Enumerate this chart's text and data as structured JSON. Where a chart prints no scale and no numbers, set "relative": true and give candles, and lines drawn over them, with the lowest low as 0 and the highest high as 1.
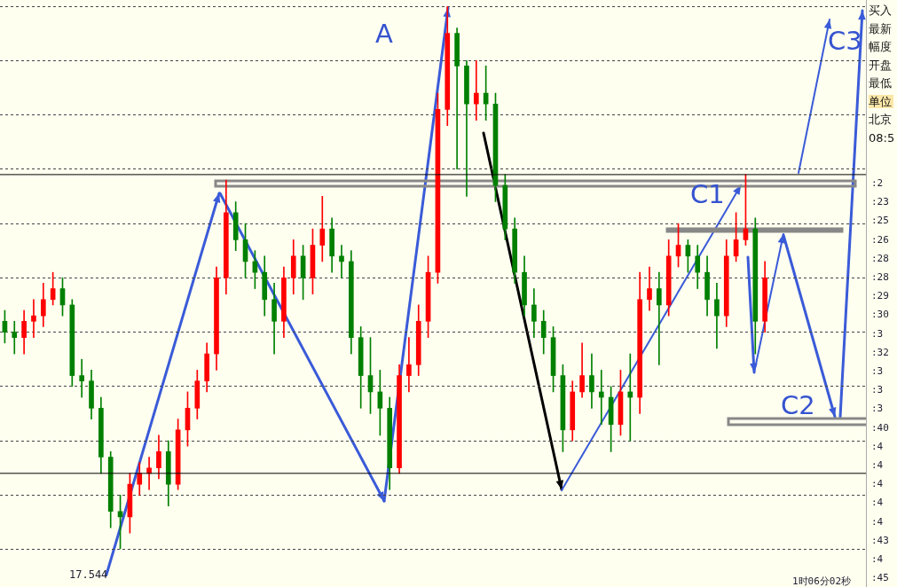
{
  "chart_data": {
    "type": "candlestick",
    "relative": true,
    "grid": "y",
    "legend": false,
    "categories": [
      null,
      null,
      null,
      null,
      null,
      null,
      null,
      null,
      null,
      null,
      null,
      null,
      null,
      null,
      null,
      null,
      null,
      null,
      null,
      null,
      null,
      null,
      null,
      null,
      null,
      null,
      null,
      null,
      null,
      null,
      null,
      null,
      null,
      null,
      null,
      null,
      null,
      null,
      null,
      null,
      null,
      null,
      null,
      null,
      null,
      null,
      null,
      null,
      null,
      null,
      null,
      null,
      null,
      null,
      null,
      null,
      null,
      null,
      null,
      null,
      null,
      null,
      null,
      null,
      null,
      null,
      null,
      null,
      null,
      null,
      null,
      null,
      null,
      null,
      null,
      null,
      null,
      null,
      null,
      null,
      null,
      null,
      null,
      null,
      null,
      null,
      null,
      null,
      null,
      null
    ],
    "ohlc": [
      [
        0.42,
        0.44,
        0.38,
        0.4
      ],
      [
        0.4,
        0.42,
        0.36,
        0.39
      ],
      [
        0.39,
        0.44,
        0.36,
        0.42
      ],
      [
        0.42,
        0.46,
        0.39,
        0.43
      ],
      [
        0.43,
        0.49,
        0.41,
        0.46
      ],
      [
        0.46,
        0.51,
        0.45,
        0.48
      ],
      [
        0.48,
        0.5,
        0.43,
        0.45
      ],
      [
        0.45,
        0.46,
        0.3,
        0.32
      ],
      [
        0.32,
        0.35,
        0.28,
        0.31
      ],
      [
        0.31,
        0.33,
        0.24,
        0.26
      ],
      [
        0.26,
        0.28,
        0.14,
        0.17
      ],
      [
        0.17,
        0.18,
        0.04,
        0.07
      ],
      [
        0.07,
        0.1,
        0,
        0.06
      ],
      [
        0.06,
        0.14,
        0.03,
        0.12
      ],
      [
        0.12,
        0.16,
        0.1,
        0.14
      ],
      [
        0.14,
        0.17,
        0.11,
        0.15
      ],
      [
        0.15,
        0.21,
        0.13,
        0.18
      ],
      [
        0.18,
        0.2,
        0.08,
        0.12
      ],
      [
        0.12,
        0.24,
        0.11,
        0.22
      ],
      [
        0.22,
        0.29,
        0.19,
        0.26
      ],
      [
        0.26,
        0.33,
        0.24,
        0.31
      ],
      [
        0.31,
        0.38,
        0.29,
        0.36
      ],
      [
        0.36,
        0.52,
        0.33,
        0.5
      ],
      [
        0.5,
        0.68,
        0.47,
        0.62
      ],
      [
        0.62,
        0.64,
        0.55,
        0.57
      ],
      [
        0.57,
        0.6,
        0.5,
        0.53
      ],
      [
        0.53,
        0.55,
        0.48,
        0.51
      ],
      [
        0.51,
        0.54,
        0.43,
        0.46
      ],
      [
        0.46,
        0.49,
        0.36,
        0.42
      ],
      [
        0.42,
        0.52,
        0.39,
        0.5
      ],
      [
        0.5,
        0.57,
        0.47,
        0.54
      ],
      [
        0.54,
        0.56,
        0.46,
        0.5
      ],
      [
        0.5,
        0.59,
        0.47,
        0.56
      ],
      [
        0.56,
        0.65,
        0.53,
        0.59
      ],
      [
        0.59,
        0.61,
        0.51,
        0.54
      ],
      [
        0.54,
        0.56,
        0.5,
        0.53
      ],
      [
        0.53,
        0.55,
        0.36,
        0.39
      ],
      [
        0.39,
        0.41,
        0.26,
        0.32
      ],
      [
        0.32,
        0.39,
        0.25,
        0.29
      ],
      [
        0.29,
        0.33,
        0.21,
        0.26
      ],
      [
        0.26,
        0.28,
        0.11,
        0.15
      ],
      [
        0.15,
        0.34,
        0.14,
        0.32
      ],
      [
        0.32,
        0.39,
        0.29,
        0.34
      ],
      [
        0.34,
        0.45,
        0.32,
        0.42
      ],
      [
        0.42,
        0.54,
        0.39,
        0.51
      ],
      [
        0.51,
        0.84,
        0.49,
        0.81
      ],
      [
        0.81,
        1,
        0.78,
        0.95
      ],
      [
        0.95,
        0.96,
        0.7,
        0.89
      ],
      [
        0.89,
        0.9,
        0.65,
        0.82
      ],
      [
        0.82,
        0.9,
        0.79,
        0.84
      ],
      [
        0.84,
        0.89,
        0.79,
        0.82
      ],
      [
        0.82,
        0.84,
        0.64,
        0.67
      ],
      [
        0.67,
        0.69,
        0.57,
        0.59
      ],
      [
        0.59,
        0.61,
        0.49,
        0.51
      ],
      [
        0.51,
        0.54,
        0.43,
        0.45
      ],
      [
        0.45,
        0.48,
        0.39,
        0.42
      ],
      [
        0.42,
        0.44,
        0.36,
        0.39
      ],
      [
        0.39,
        0.41,
        0.29,
        0.32
      ],
      [
        0.32,
        0.34,
        0.18,
        0.22
      ],
      [
        0.22,
        0.31,
        0.2,
        0.29
      ],
      [
        0.29,
        0.38,
        0.28,
        0.32
      ],
      [
        0.32,
        0.36,
        0.26,
        0.29
      ],
      [
        0.29,
        0.33,
        0.23,
        0.28
      ],
      [
        0.28,
        0.3,
        0.18,
        0.23
      ],
      [
        0.23,
        0.33,
        0.21,
        0.29
      ],
      [
        0.29,
        0.36,
        0.2,
        0.28
      ],
      [
        0.28,
        0.51,
        0.25,
        0.46
      ],
      [
        0.46,
        0.52,
        0.44,
        0.48
      ],
      [
        0.48,
        0.51,
        0.34,
        0.45
      ],
      [
        0.45,
        0.57,
        0.43,
        0.54
      ],
      [
        0.54,
        0.6,
        0.52,
        0.56
      ],
      [
        0.56,
        0.57,
        0.51,
        0.54
      ],
      [
        0.54,
        0.56,
        0.48,
        0.51
      ],
      [
        0.51,
        0.54,
        0.43,
        0.46
      ],
      [
        0.46,
        0.49,
        0.37,
        0.43
      ],
      [
        0.43,
        0.57,
        0.41,
        0.54
      ],
      [
        0.54,
        0.62,
        0.53,
        0.57
      ],
      [
        0.57,
        0.69,
        0.56,
        0.59
      ],
      [
        0.59,
        0.61,
        0.36,
        0.42
      ],
      [
        0.42,
        0.53,
        0.4,
        0.5
      ],
      null,
      null,
      null,
      null,
      null,
      null,
      null,
      null,
      null,
      null
    ],
    "colors": [
      "#008000",
      "#008000",
      "#ff0000",
      "#ff0000",
      "#ff0000",
      "#ff0000",
      "#008000",
      "#008000",
      "#008000",
      "#008000",
      "#008000",
      "#008000",
      "#008000",
      "#ff0000",
      "#ff0000",
      "#ff0000",
      "#ff0000",
      "#008000",
      "#ff0000",
      "#ff0000",
      "#ff0000",
      "#ff0000",
      "#ff0000",
      "#ff0000",
      "#008000",
      "#008000",
      "#008000",
      "#008000",
      "#008000",
      "#ff0000",
      "#ff0000",
      "#008000",
      "#ff0000",
      "#ff0000",
      "#008000",
      "#008000",
      "#008000",
      "#008000",
      "#008000",
      "#008000",
      "#008000",
      "#ff0000",
      "#ff0000",
      "#ff0000",
      "#ff0000",
      "#ff0000",
      "#ff0000",
      "#008000",
      "#008000",
      "#ff0000",
      "#008000",
      "#008000",
      "#008000",
      "#008000",
      "#008000",
      "#008000",
      "#008000",
      "#008000",
      "#008000",
      "#ff0000",
      "#ff0000",
      "#008000",
      "#008000",
      "#008000",
      "#ff0000",
      "#008000",
      "#ff0000",
      "#ff0000",
      "#008000",
      "#ff0000",
      "#ff0000",
      "#008000",
      "#008000",
      "#008000",
      "#008000",
      "#ff0000",
      "#ff0000",
      "#ff0000",
      "#008000",
      "#ff0000",
      null,
      null,
      null,
      null,
      null,
      null,
      null,
      null,
      null,
      null
    ],
    "ref_lines": [
      {
        "axis": "y",
        "value": 0.69,
        "color": "#000000"
      },
      {
        "axis": "y",
        "value": 0.14,
        "color": "#000000"
      }
    ],
    "annotations": [
      "A",
      "C1",
      "C2",
      "C3",
      "17.544",
      "1时06分02秒",
      "买入",
      "最新",
      "幅度",
      "开盘",
      "最低",
      "单位",
      "北京",
      "08:5",
      ":2",
      ":23",
      ":25",
      ":26",
      ":28",
      ":28",
      ":29",
      ":30",
      ":3",
      ":32",
      ":3",
      ":3",
      ":3",
      ":40",
      ":4",
      ":4",
      ":4",
      ":4",
      ":4",
      ":43",
      ":4",
      ":45"
    ]
  }
}
